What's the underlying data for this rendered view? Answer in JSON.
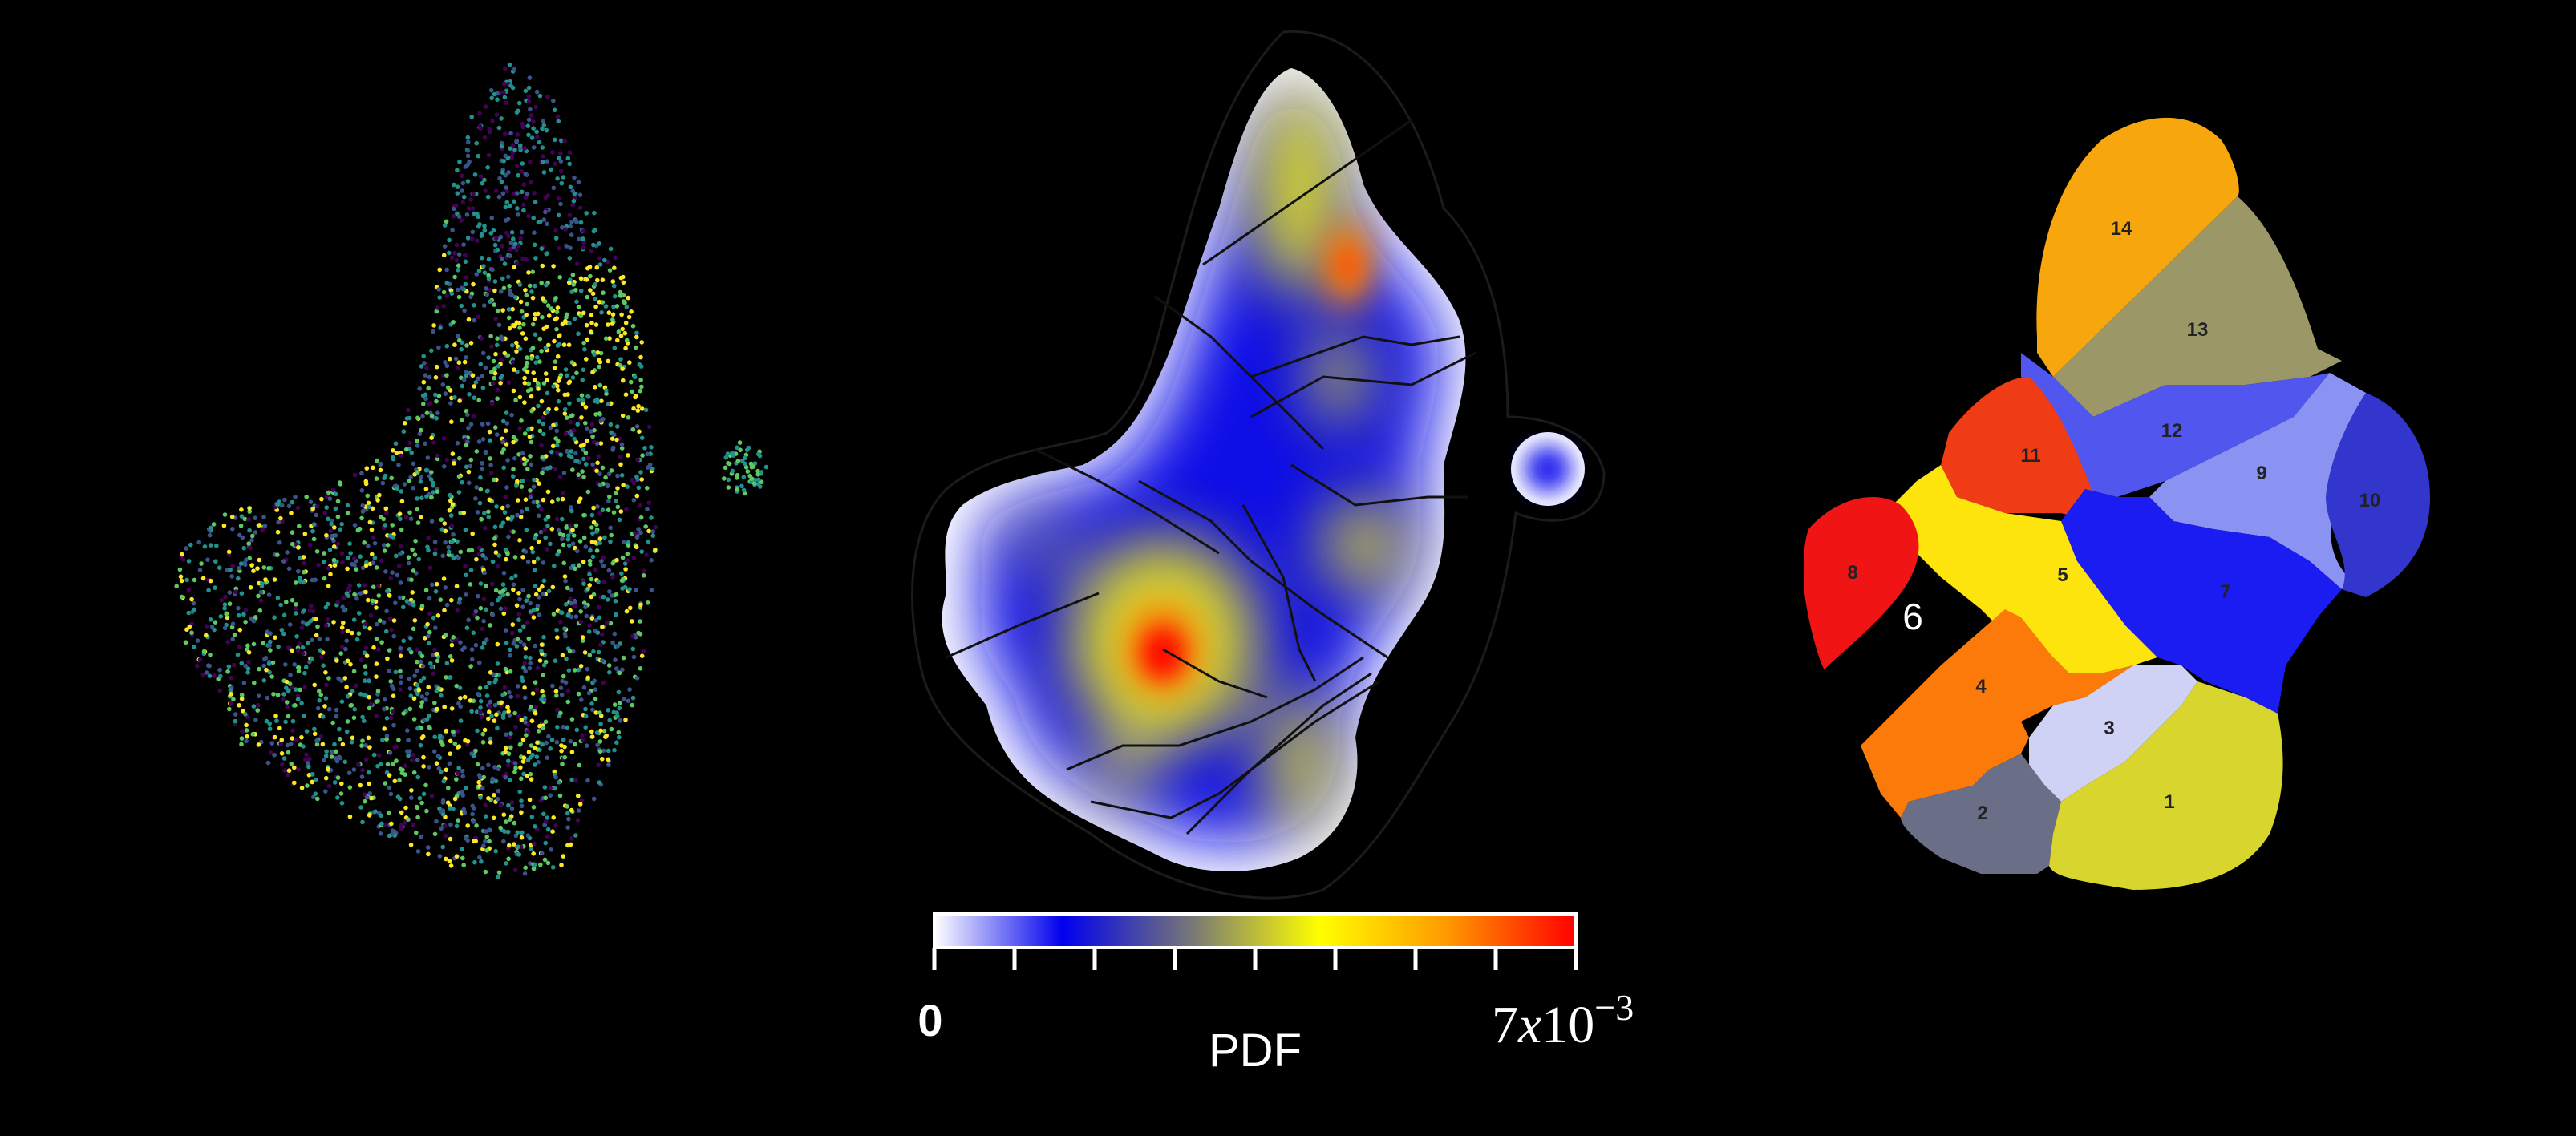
{
  "colorbar": {
    "min_label": "0",
    "max_coefficient": "7",
    "max_times": "x",
    "max_base": "10",
    "max_exponent": "−3",
    "title": "PDF",
    "max_value": 0.007,
    "colors": [
      "#ffffff",
      "#0000ee",
      "#777777",
      "#ffff00",
      "#ff9900",
      "#ff0000"
    ]
  },
  "clusters": [
    {
      "label": "1",
      "color": "#d8d62e"
    },
    {
      "label": "2",
      "color": "#6a6e86"
    },
    {
      "label": "3",
      "color": "#cfd2f4"
    },
    {
      "label": "4",
      "color": "#fb7a0a"
    },
    {
      "label": "5",
      "color": "#fde40c"
    },
    {
      "label": "6",
      "color": "#000000"
    },
    {
      "label": "7",
      "color": "#1a1cf2"
    },
    {
      "label": "8",
      "color": "#f01414"
    },
    {
      "label": "9",
      "color": "#8b93f2"
    },
    {
      "label": "10",
      "color": "#3236cc"
    },
    {
      "label": "11",
      "color": "#ef3c14"
    },
    {
      "label": "12",
      "color": "#5056ee"
    },
    {
      "label": "13",
      "color": "#9b9766"
    },
    {
      "label": "14",
      "color": "#f7a60d"
    }
  ],
  "scatter": {
    "palette": [
      "#440154",
      "#3b528b",
      "#21918c",
      "#5ec962",
      "#fde725"
    ]
  }
}
